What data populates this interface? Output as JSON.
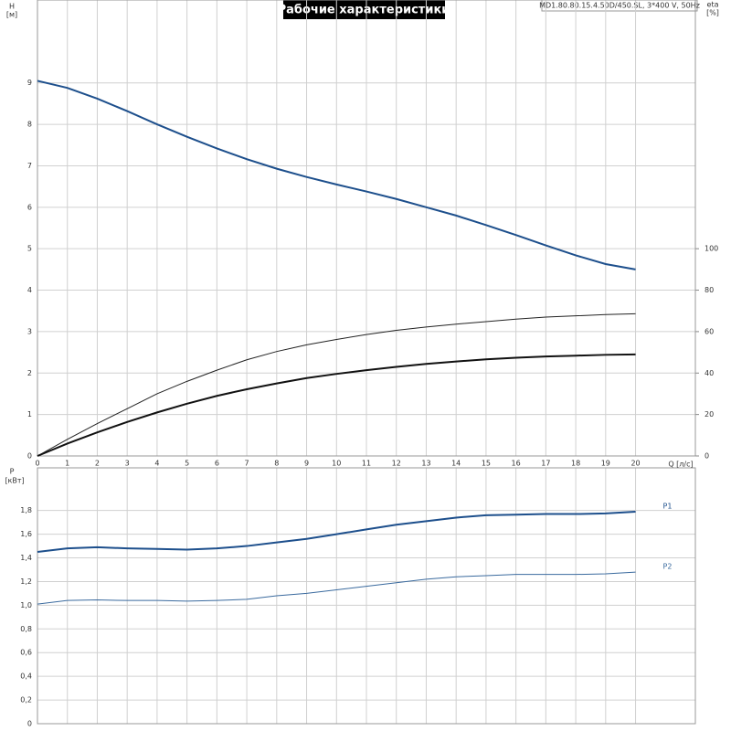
{
  "chart_data": [
    {
      "type": "line",
      "title": "Рабочие характеристики",
      "subtitle": "MD1.80.80.15.4.50D/450.SL, 3*400 V, 50Hz",
      "y_label": "H",
      "y_unit": "[м]",
      "y2_label": "eta",
      "y2_unit": "[%]",
      "x_label": "Q [л/с]",
      "x": [
        0,
        1,
        2,
        3,
        4,
        5,
        6,
        7,
        8,
        9,
        10,
        11,
        12,
        13,
        14,
        15,
        16,
        17,
        18,
        19,
        20
      ],
      "xlim": [
        0,
        22
      ],
      "xticks": [
        0,
        1,
        2,
        3,
        4,
        5,
        6,
        7,
        8,
        9,
        10,
        11,
        12,
        13,
        14,
        15,
        16,
        17,
        18,
        19,
        20
      ],
      "ylim": [
        0,
        11
      ],
      "yticks": [
        0,
        1,
        2,
        3,
        4,
        5,
        6,
        7,
        8,
        9
      ],
      "y2lim": [
        0,
        220
      ],
      "y2ticks": [
        0,
        20,
        40,
        60,
        80,
        100
      ],
      "grid": true,
      "show_xtick_labels": true,
      "series": [
        {
          "color": "#1d4f8c",
          "width": 2,
          "values": [
            9.05,
            8.88,
            8.62,
            8.32,
            8.0,
            7.7,
            7.42,
            7.16,
            6.93,
            6.73,
            6.55,
            6.38,
            6.2,
            6.0,
            5.8,
            5.57,
            5.33,
            5.08,
            4.84,
            4.63,
            4.5
          ]
        },
        {
          "color": "#222222",
          "width": 1,
          "axis": "y2",
          "values": [
            0,
            8,
            15.6,
            22.8,
            30,
            36,
            41.4,
            46.4,
            50.4,
            53.6,
            56.2,
            58.6,
            60.6,
            62.2,
            63.6,
            64.8,
            66,
            67,
            67.6,
            68.2,
            68.6
          ]
        },
        {
          "color": "#111111",
          "width": 2,
          "axis": "y2",
          "values": [
            0,
            6,
            11.4,
            16.4,
            21,
            25.2,
            29,
            32.2,
            35,
            37.6,
            39.6,
            41.4,
            43,
            44.4,
            45.6,
            46.6,
            47.4,
            48,
            48.4,
            48.8,
            49
          ]
        }
      ]
    },
    {
      "type": "line",
      "y_label": "P",
      "y_unit": "[кВт]",
      "x": [
        0,
        1,
        2,
        3,
        4,
        5,
        6,
        7,
        8,
        9,
        10,
        11,
        12,
        13,
        14,
        15,
        16,
        17,
        18,
        19,
        20
      ],
      "xlim": [
        0,
        22
      ],
      "xticks": [
        0,
        1,
        2,
        3,
        4,
        5,
        6,
        7,
        8,
        9,
        10,
        11,
        12,
        13,
        14,
        15,
        16,
        17,
        18,
        19,
        20
      ],
      "ylim": [
        0,
        2.16
      ],
      "yticks": [
        0,
        {
          "value": 0.2,
          "label": "0,2"
        },
        {
          "value": 0.4,
          "label": "0,4"
        },
        {
          "value": 0.6,
          "label": "0,6"
        },
        {
          "value": 0.8,
          "label": "0,8"
        },
        {
          "value": 1.0,
          "label": "1,0"
        },
        {
          "value": 1.2,
          "label": "1,2"
        },
        {
          "value": 1.4,
          "label": "1,4"
        },
        {
          "value": 1.6,
          "label": "1,6"
        },
        {
          "value": 1.8,
          "label": "1,8"
        }
      ],
      "grid": true,
      "show_xtick_labels": false,
      "series": [
        {
          "name": "P1",
          "color": "#1d4f8c",
          "width": 2,
          "values": [
            1.45,
            1.48,
            1.49,
            1.48,
            1.475,
            1.47,
            1.48,
            1.5,
            1.53,
            1.56,
            1.6,
            1.64,
            1.68,
            1.71,
            1.74,
            1.76,
            1.765,
            1.77,
            1.77,
            1.775,
            1.79
          ]
        },
        {
          "name": "P2",
          "color": "#3a6a9e",
          "width": 1,
          "values": [
            1.01,
            1.04,
            1.045,
            1.04,
            1.04,
            1.035,
            1.04,
            1.05,
            1.08,
            1.1,
            1.13,
            1.16,
            1.19,
            1.22,
            1.24,
            1.25,
            1.26,
            1.26,
            1.26,
            1.265,
            1.28
          ]
        }
      ]
    }
  ]
}
